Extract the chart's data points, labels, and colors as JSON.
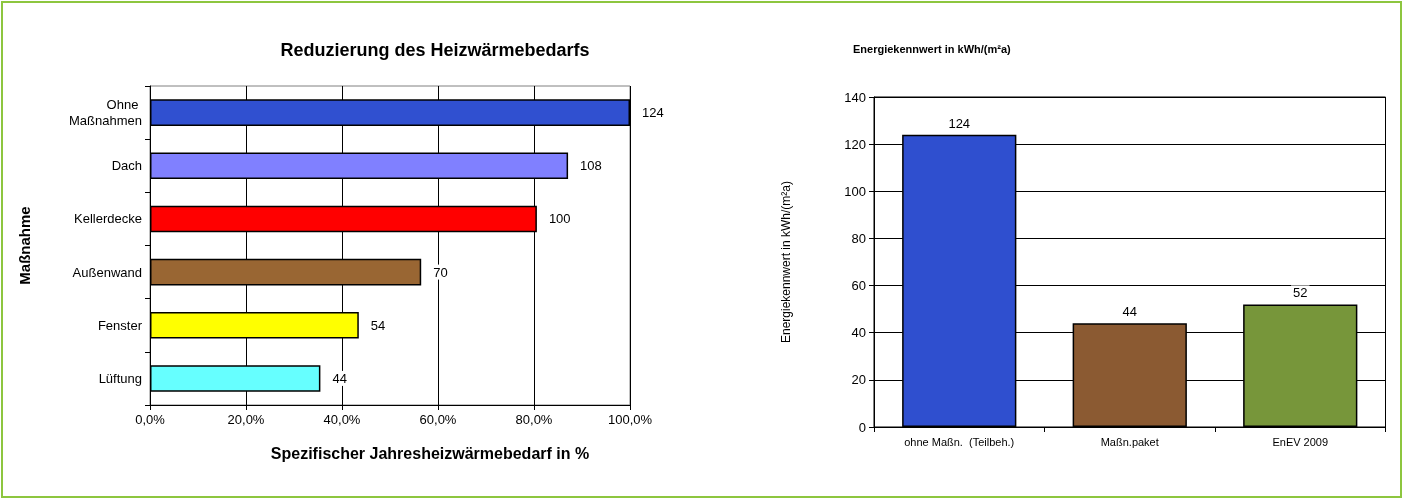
{
  "chart_data": [
    {
      "type": "bar",
      "orientation": "horizontal",
      "title": "Reduzierung des Heizwärmebedarfs",
      "xlabel": "Spezifischer Jahresheizwärmebedarf in %",
      "ylabel": "Maßnahme",
      "categories": [
        "Ohne Maßnahmen",
        "Dach",
        "Kellerdecke",
        "Außenwand",
        "Fenster",
        "Lüftung"
      ],
      "values": [
        100,
        87.1,
        80.6,
        56.5,
        43.5,
        35.5
      ],
      "colors": [
        "#3050d0",
        "#8080ff",
        "#ff0000",
        "#996633",
        "#ffff00",
        "#66ffff"
      ],
      "annotations": [
        {
          "text": "124",
          "x": 100,
          "y": "Ohne Maßnahmen"
        },
        {
          "text": "108",
          "x": 87.1,
          "y": "Dach"
        },
        {
          "text": "100",
          "x": 80.6,
          "y": "Kellerdecke"
        },
        {
          "text": "70",
          "x": 56.5,
          "y": "Außenwand"
        },
        {
          "text": "54",
          "x": 43.5,
          "y": "Fenster"
        },
        {
          "text": "44",
          "x": 35.5,
          "y": "Lüftung"
        }
      ],
      "xlim": [
        0,
        100
      ],
      "xticks": [
        {
          "value": 0,
          "label": "0,0%"
        },
        {
          "value": 20,
          "label": "20,0%"
        },
        {
          "value": 40,
          "label": "40,0%"
        },
        {
          "value": 60,
          "label": "60,0%"
        },
        {
          "value": 80,
          "label": "80,0%"
        },
        {
          "value": 100,
          "label": "100,0%"
        }
      ],
      "grid": "x"
    },
    {
      "type": "bar",
      "title": "Energiekennwert in kWh/(m²a)",
      "ylabel": "Energiekennwert in kWh/(m²a)",
      "categories": [
        "ohne Maßn.  (Teilbeh.)",
        "Maßn.paket",
        "EnEV 2009"
      ],
      "values": [
        124,
        44,
        52
      ],
      "colors": [
        "#2f4fcf",
        "#8b5a32",
        "#77963a"
      ],
      "data_labels": true,
      "ylim": [
        0,
        140
      ],
      "yticks": [
        0,
        20,
        40,
        60,
        80,
        100,
        120,
        140
      ],
      "grid": "y"
    }
  ]
}
